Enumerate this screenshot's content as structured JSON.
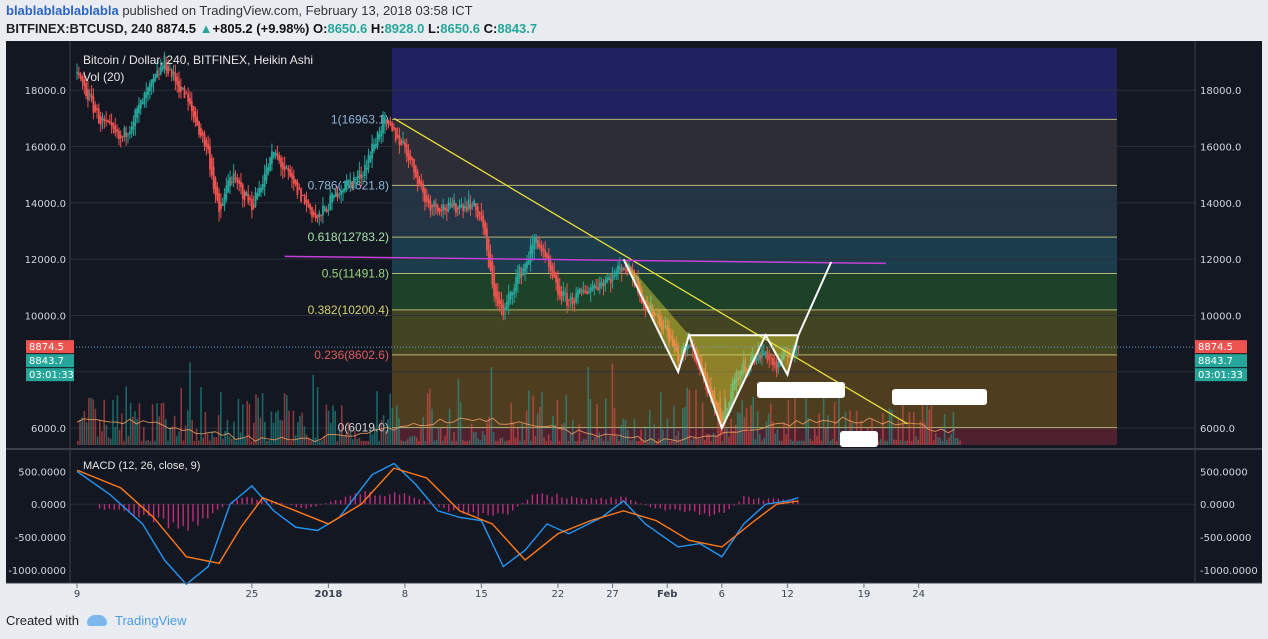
{
  "header": {
    "user": "blablablablablabla",
    "published": " published on TradingView.com, February 13, 2018 03:58 ICT",
    "symbol": "BITFINEX:BTCUSD, 240",
    "price": "8874.5",
    "change": "+805.2 (+9.98%)",
    "o_label": "O:",
    "o_val": "8650.6",
    "h_label": "H:",
    "h_val": "8928.0",
    "l_label": "L:",
    "l_val": "8650.6",
    "c_label": "C:",
    "c_val": "8843.7"
  },
  "footer": {
    "created": "Created with",
    "brand": "TradingView"
  },
  "colors": {
    "up": "#26a69a",
    "down": "#ef5350",
    "bg": "#131722",
    "fib_line": "#c8c27a",
    "trend": "#e8e03a",
    "neckline": "#c440d8",
    "macd": "#2196f3",
    "signal": "#ff7a1a",
    "hist": "#e0308a"
  },
  "chart_data": [
    {
      "type": "candlestick",
      "title": "Bitcoin / Dollar, 240, BITFINEX, Heikin Ashi",
      "indicator": "Vol (20)",
      "x_tick_labels": [
        "9",
        "25",
        "2018",
        "8",
        "15",
        "22",
        "27",
        "Feb",
        "6",
        "12",
        "19",
        "24"
      ],
      "y_ticks": [
        6000.0,
        8000.0,
        10000.0,
        12000.0,
        14000.0,
        16000.0,
        18000.0
      ],
      "y_tick_labels": [
        "6000.0",
        "8000.0",
        "10000.0",
        "12000.0",
        "14000.0",
        "16000.0",
        "18000.0"
      ],
      "ylim": [
        5400,
        19500
      ],
      "price_path": [
        {
          "x": "Dec 9",
          "y": 18600
        },
        {
          "x": "Dec 11",
          "y": 17000
        },
        {
          "x": "Dec 13",
          "y": 16200
        },
        {
          "x": "Dec 15",
          "y": 17600
        },
        {
          "x": "Dec 17",
          "y": 19000
        },
        {
          "x": "Dec 19",
          "y": 17700
        },
        {
          "x": "Dec 21",
          "y": 15800
        },
        {
          "x": "Dec 22",
          "y": 13500
        },
        {
          "x": "Dec 23",
          "y": 15000
        },
        {
          "x": "Dec 25",
          "y": 13900
        },
        {
          "x": "Dec 27",
          "y": 15800
        },
        {
          "x": "Dec 29",
          "y": 14500
        },
        {
          "x": "Dec 31",
          "y": 13400
        },
        {
          "x": "Jan 2",
          "y": 14500
        },
        {
          "x": "Jan 4",
          "y": 15000
        },
        {
          "x": "Jan 6",
          "y": 16900
        },
        {
          "x": "Jan 8",
          "y": 16000
        },
        {
          "x": "Jan 9",
          "y": 15000
        },
        {
          "x": "Jan 10",
          "y": 14000
        },
        {
          "x": "Jan 12",
          "y": 13800
        },
        {
          "x": "Jan 14",
          "y": 14000
        },
        {
          "x": "Jan 15",
          "y": 13500
        },
        {
          "x": "Jan 16",
          "y": 11000
        },
        {
          "x": "Jan 17",
          "y": 10000
        },
        {
          "x": "Jan 18",
          "y": 11200
        },
        {
          "x": "Jan 19",
          "y": 11800
        },
        {
          "x": "Jan 20",
          "y": 12800
        },
        {
          "x": "Jan 21",
          "y": 11800
        },
        {
          "x": "Jan 22",
          "y": 10800
        },
        {
          "x": "Jan 23",
          "y": 10500
        },
        {
          "x": "Jan 25",
          "y": 11000
        },
        {
          "x": "Jan 27",
          "y": 11400
        },
        {
          "x": "Jan 28",
          "y": 11800
        },
        {
          "x": "Jan 29",
          "y": 11400
        },
        {
          "x": "Jan 30",
          "y": 10300
        },
        {
          "x": "Jan 31",
          "y": 10000
        },
        {
          "x": "Feb 1",
          "y": 9400
        },
        {
          "x": "Feb 2",
          "y": 8500
        },
        {
          "x": "Feb 3",
          "y": 9000
        },
        {
          "x": "Feb 4",
          "y": 8200
        },
        {
          "x": "Feb 5",
          "y": 7000
        },
        {
          "x": "Feb 6",
          "y": 6200
        },
        {
          "x": "Feb 7",
          "y": 7600
        },
        {
          "x": "Feb 8",
          "y": 8200
        },
        {
          "x": "Feb 9",
          "y": 8500
        },
        {
          "x": "Feb 10",
          "y": 8700
        },
        {
          "x": "Feb 11",
          "y": 8100
        },
        {
          "x": "Feb 12",
          "y": 8700
        },
        {
          "x": "Feb 13",
          "y": 8843.7
        }
      ],
      "fibonacci": [
        {
          "ratio": "1",
          "level": 16963.1,
          "label": "1(16963.1)"
        },
        {
          "ratio": "0.786",
          "level": 14621.8,
          "label": "0.786(14621.8)"
        },
        {
          "ratio": "0.618",
          "level": 12783.2,
          "label": "0.618(12783.2)"
        },
        {
          "ratio": "0.5",
          "level": 11491.8,
          "label": "0.5(11491.8)"
        },
        {
          "ratio": "0.382",
          "level": 10200.4,
          "label": "0.382(10200.4)"
        },
        {
          "ratio": "0.236",
          "level": 8602.6,
          "label": "0.236(8602.6)"
        },
        {
          "ratio": "0",
          "level": 6019.0,
          "label": "0(6019.0)"
        }
      ],
      "fib_zone_colors": [
        "#23256a",
        "#323238",
        "#283a4a",
        "#1e4454",
        "#214a2a",
        "#4b4d22",
        "#5a4420",
        "#5a2230"
      ],
      "price_labels": [
        {
          "text": "8874.5",
          "color": "#ef5350"
        },
        {
          "text": "8843.7",
          "color": "#26a69a"
        },
        {
          "text": "03:01:33",
          "color": "#26a69a"
        }
      ],
      "trendline": {
        "from": {
          "x": "Jan 7",
          "y": 17000
        },
        "to": {
          "x": "Feb 23",
          "y": 6150
        }
      },
      "neckline": {
        "from": {
          "x": "Dec 28",
          "y": 12100
        },
        "to": {
          "x": "Feb 21",
          "y": 11850
        }
      },
      "pattern": [
        {
          "x": "Jan 28",
          "y": 12000
        },
        {
          "x": "Feb 2",
          "y": 8000
        },
        {
          "x": "Feb 3",
          "y": 9300
        },
        {
          "x": "Feb 6",
          "y": 6000
        },
        {
          "x": "Feb 10",
          "y": 9300
        },
        {
          "x": "Feb 12",
          "y": 7900
        },
        {
          "x": "Feb 13",
          "y": 9300
        },
        {
          "x": "Feb 16",
          "y": 11900
        }
      ]
    },
    {
      "type": "line",
      "title": "MACD (12, 26, close, 9)",
      "y_ticks": [
        -1000,
        -500,
        0,
        500
      ],
      "y_tick_labels": [
        "-1000.0000",
        "-500.0000",
        "0.0000",
        "500.0000"
      ],
      "ylim": [
        -1200,
        750
      ],
      "series": [
        {
          "name": "MACD",
          "points": [
            {
              "x": "Dec 9",
              "y": 500
            },
            {
              "x": "Dec 12",
              "y": 150
            },
            {
              "x": "Dec 15",
              "y": -300
            },
            {
              "x": "Dec 17",
              "y": -850
            },
            {
              "x": "Dec 19",
              "y": -1220
            },
            {
              "x": "Dec 21",
              "y": -950
            },
            {
              "x": "Dec 23",
              "y": 0
            },
            {
              "x": "Dec 25",
              "y": 280
            },
            {
              "x": "Dec 27",
              "y": -100
            },
            {
              "x": "Dec 29",
              "y": -350
            },
            {
              "x": "Dec 31",
              "y": -400
            },
            {
              "x": "Jan 2",
              "y": -200
            },
            {
              "x": "Jan 5",
              "y": 450
            },
            {
              "x": "Jan 7",
              "y": 620
            },
            {
              "x": "Jan 9",
              "y": 300
            },
            {
              "x": "Jan 11",
              "y": -100
            },
            {
              "x": "Jan 13",
              "y": -200
            },
            {
              "x": "Jan 15",
              "y": -250
            },
            {
              "x": "Jan 17",
              "y": -950
            },
            {
              "x": "Jan 19",
              "y": -700
            },
            {
              "x": "Jan 21",
              "y": -300
            },
            {
              "x": "Jan 23",
              "y": -450
            },
            {
              "x": "Jan 26",
              "y": -200
            },
            {
              "x": "Jan 28",
              "y": 50
            },
            {
              "x": "Jan 30",
              "y": -300
            },
            {
              "x": "Feb 2",
              "y": -650
            },
            {
              "x": "Feb 4",
              "y": -600
            },
            {
              "x": "Feb 6",
              "y": -800
            },
            {
              "x": "Feb 8",
              "y": -300
            },
            {
              "x": "Feb 10",
              "y": 0
            },
            {
              "x": "Feb 12",
              "y": 50
            },
            {
              "x": "Feb 13",
              "y": 100
            }
          ]
        },
        {
          "name": "Signal",
          "points": [
            {
              "x": "Dec 9",
              "y": 520
            },
            {
              "x": "Dec 13",
              "y": 250
            },
            {
              "x": "Dec 16",
              "y": -200
            },
            {
              "x": "Dec 19",
              "y": -800
            },
            {
              "x": "Dec 22",
              "y": -900
            },
            {
              "x": "Dec 24",
              "y": -350
            },
            {
              "x": "Dec 26",
              "y": 100
            },
            {
              "x": "Dec 29",
              "y": -100
            },
            {
              "x": "Jan 1",
              "y": -300
            },
            {
              "x": "Jan 4",
              "y": 0
            },
            {
              "x": "Jan 7",
              "y": 550
            },
            {
              "x": "Jan 10",
              "y": 400
            },
            {
              "x": "Jan 13",
              "y": -100
            },
            {
              "x": "Jan 16",
              "y": -300
            },
            {
              "x": "Jan 19",
              "y": -850
            },
            {
              "x": "Jan 22",
              "y": -450
            },
            {
              "x": "Jan 25",
              "y": -250
            },
            {
              "x": "Jan 28",
              "y": -100
            },
            {
              "x": "Jan 31",
              "y": -250
            },
            {
              "x": "Feb 3",
              "y": -550
            },
            {
              "x": "Feb 6",
              "y": -650
            },
            {
              "x": "Feb 9",
              "y": -250
            },
            {
              "x": "Feb 11",
              "y": 0
            },
            {
              "x": "Feb 13",
              "y": 50
            }
          ]
        }
      ],
      "histogram": {
        "name": "Histogram",
        "points": [
          {
            "x": "Dec 12",
            "y": -80
          },
          {
            "x": "Dec 16",
            "y": -250
          },
          {
            "x": "Dec 19",
            "y": -380
          },
          {
            "x": "Dec 24",
            "y": 120
          },
          {
            "x": "Dec 27",
            "y": 50
          },
          {
            "x": "Dec 30",
            "y": -80
          },
          {
            "x": "Jan 4",
            "y": 200
          },
          {
            "x": "Jan 8",
            "y": 150
          },
          {
            "x": "Jan 12",
            "y": -100
          },
          {
            "x": "Jan 14",
            "y": -150
          },
          {
            "x": "Jan 17",
            "y": -200
          },
          {
            "x": "Jan 20",
            "y": 200
          },
          {
            "x": "Jan 24",
            "y": 80
          },
          {
            "x": "Jan 28",
            "y": 100
          },
          {
            "x": "Jan 31",
            "y": -80
          },
          {
            "x": "Feb 3",
            "y": -120
          },
          {
            "x": "Feb 6",
            "y": -180
          },
          {
            "x": "Feb 8",
            "y": 120
          },
          {
            "x": "Feb 10",
            "y": 80
          },
          {
            "x": "Feb 13",
            "y": 60
          }
        ]
      }
    }
  ]
}
